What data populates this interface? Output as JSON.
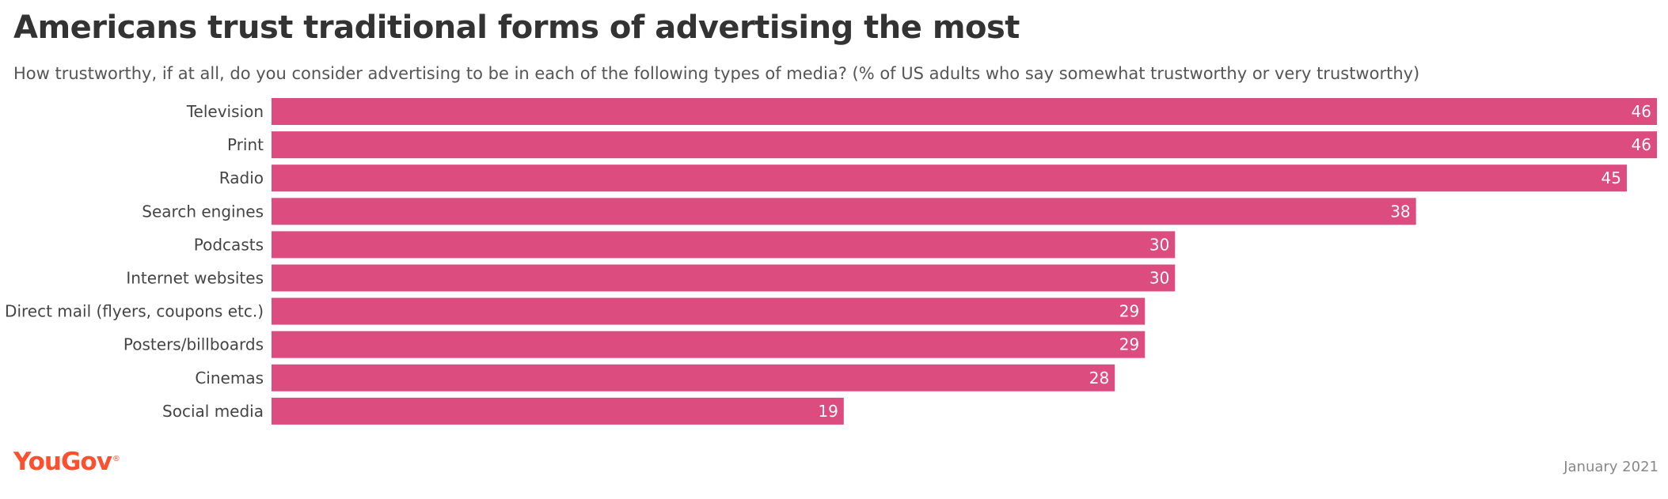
{
  "colors": {
    "bar": "#dd4c7f",
    "label_inside": "#ffffff",
    "category_text": "#444444",
    "brand": "#ff4f2e"
  },
  "chart_data": {
    "type": "bar",
    "orientation": "horizontal",
    "title": "Americans trust traditional forms of advertising the most",
    "subtitle": "How trustworthy, if at all, do you consider advertising to be in each of the following types of media? (% of US adults who say somewhat trustworthy or very trustworthy)",
    "categories": [
      "Television",
      "Print",
      "Radio",
      "Search engines",
      "Podcasts",
      "Internet websites",
      "Direct mail (flyers, coupons etc.)",
      "Posters/billboards",
      "Cinemas",
      "Social media"
    ],
    "values": [
      46,
      46,
      45,
      38,
      30,
      30,
      29,
      29,
      28,
      19
    ],
    "xlim": [
      0,
      46
    ],
    "grid": false,
    "legend": "none"
  },
  "footer": {
    "brand": "YouGov",
    "brand_mark": "®",
    "date": "January 2021"
  }
}
